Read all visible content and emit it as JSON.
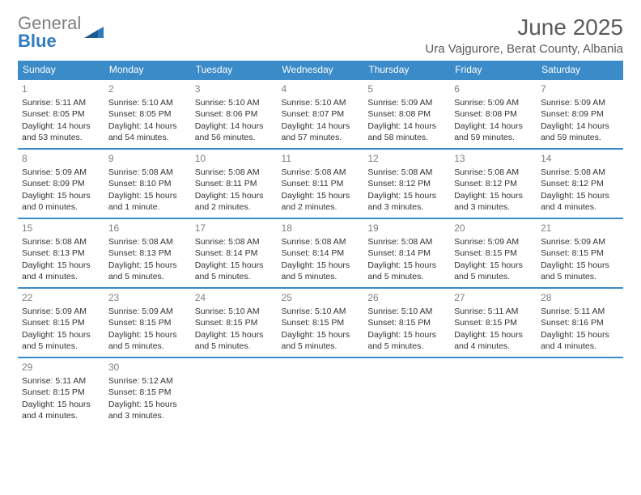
{
  "logo": {
    "gray": "General",
    "blue": "Blue"
  },
  "title": "June 2025",
  "location": "Ura Vajgurore, Berat County, Albania",
  "colors": {
    "header_bg": "#3b8bc8",
    "header_text": "#ffffff",
    "divider": "#3b8bc8",
    "daynum": "#808080",
    "body_text": "#333333",
    "title_text": "#5a5a5a",
    "logo_gray": "#808080",
    "logo_blue": "#2f7bbf"
  },
  "weekdays": [
    "Sunday",
    "Monday",
    "Tuesday",
    "Wednesday",
    "Thursday",
    "Friday",
    "Saturday"
  ],
  "weeks": [
    [
      {
        "n": "1",
        "sr": "Sunrise: 5:11 AM",
        "ss": "Sunset: 8:05 PM",
        "d1": "Daylight: 14 hours",
        "d2": "and 53 minutes."
      },
      {
        "n": "2",
        "sr": "Sunrise: 5:10 AM",
        "ss": "Sunset: 8:05 PM",
        "d1": "Daylight: 14 hours",
        "d2": "and 54 minutes."
      },
      {
        "n": "3",
        "sr": "Sunrise: 5:10 AM",
        "ss": "Sunset: 8:06 PM",
        "d1": "Daylight: 14 hours",
        "d2": "and 56 minutes."
      },
      {
        "n": "4",
        "sr": "Sunrise: 5:10 AM",
        "ss": "Sunset: 8:07 PM",
        "d1": "Daylight: 14 hours",
        "d2": "and 57 minutes."
      },
      {
        "n": "5",
        "sr": "Sunrise: 5:09 AM",
        "ss": "Sunset: 8:08 PM",
        "d1": "Daylight: 14 hours",
        "d2": "and 58 minutes."
      },
      {
        "n": "6",
        "sr": "Sunrise: 5:09 AM",
        "ss": "Sunset: 8:08 PM",
        "d1": "Daylight: 14 hours",
        "d2": "and 59 minutes."
      },
      {
        "n": "7",
        "sr": "Sunrise: 5:09 AM",
        "ss": "Sunset: 8:09 PM",
        "d1": "Daylight: 14 hours",
        "d2": "and 59 minutes."
      }
    ],
    [
      {
        "n": "8",
        "sr": "Sunrise: 5:09 AM",
        "ss": "Sunset: 8:09 PM",
        "d1": "Daylight: 15 hours",
        "d2": "and 0 minutes."
      },
      {
        "n": "9",
        "sr": "Sunrise: 5:08 AM",
        "ss": "Sunset: 8:10 PM",
        "d1": "Daylight: 15 hours",
        "d2": "and 1 minute."
      },
      {
        "n": "10",
        "sr": "Sunrise: 5:08 AM",
        "ss": "Sunset: 8:11 PM",
        "d1": "Daylight: 15 hours",
        "d2": "and 2 minutes."
      },
      {
        "n": "11",
        "sr": "Sunrise: 5:08 AM",
        "ss": "Sunset: 8:11 PM",
        "d1": "Daylight: 15 hours",
        "d2": "and 2 minutes."
      },
      {
        "n": "12",
        "sr": "Sunrise: 5:08 AM",
        "ss": "Sunset: 8:12 PM",
        "d1": "Daylight: 15 hours",
        "d2": "and 3 minutes."
      },
      {
        "n": "13",
        "sr": "Sunrise: 5:08 AM",
        "ss": "Sunset: 8:12 PM",
        "d1": "Daylight: 15 hours",
        "d2": "and 3 minutes."
      },
      {
        "n": "14",
        "sr": "Sunrise: 5:08 AM",
        "ss": "Sunset: 8:12 PM",
        "d1": "Daylight: 15 hours",
        "d2": "and 4 minutes."
      }
    ],
    [
      {
        "n": "15",
        "sr": "Sunrise: 5:08 AM",
        "ss": "Sunset: 8:13 PM",
        "d1": "Daylight: 15 hours",
        "d2": "and 4 minutes."
      },
      {
        "n": "16",
        "sr": "Sunrise: 5:08 AM",
        "ss": "Sunset: 8:13 PM",
        "d1": "Daylight: 15 hours",
        "d2": "and 5 minutes."
      },
      {
        "n": "17",
        "sr": "Sunrise: 5:08 AM",
        "ss": "Sunset: 8:14 PM",
        "d1": "Daylight: 15 hours",
        "d2": "and 5 minutes."
      },
      {
        "n": "18",
        "sr": "Sunrise: 5:08 AM",
        "ss": "Sunset: 8:14 PM",
        "d1": "Daylight: 15 hours",
        "d2": "and 5 minutes."
      },
      {
        "n": "19",
        "sr": "Sunrise: 5:08 AM",
        "ss": "Sunset: 8:14 PM",
        "d1": "Daylight: 15 hours",
        "d2": "and 5 minutes."
      },
      {
        "n": "20",
        "sr": "Sunrise: 5:09 AM",
        "ss": "Sunset: 8:15 PM",
        "d1": "Daylight: 15 hours",
        "d2": "and 5 minutes."
      },
      {
        "n": "21",
        "sr": "Sunrise: 5:09 AM",
        "ss": "Sunset: 8:15 PM",
        "d1": "Daylight: 15 hours",
        "d2": "and 5 minutes."
      }
    ],
    [
      {
        "n": "22",
        "sr": "Sunrise: 5:09 AM",
        "ss": "Sunset: 8:15 PM",
        "d1": "Daylight: 15 hours",
        "d2": "and 5 minutes."
      },
      {
        "n": "23",
        "sr": "Sunrise: 5:09 AM",
        "ss": "Sunset: 8:15 PM",
        "d1": "Daylight: 15 hours",
        "d2": "and 5 minutes."
      },
      {
        "n": "24",
        "sr": "Sunrise: 5:10 AM",
        "ss": "Sunset: 8:15 PM",
        "d1": "Daylight: 15 hours",
        "d2": "and 5 minutes."
      },
      {
        "n": "25",
        "sr": "Sunrise: 5:10 AM",
        "ss": "Sunset: 8:15 PM",
        "d1": "Daylight: 15 hours",
        "d2": "and 5 minutes."
      },
      {
        "n": "26",
        "sr": "Sunrise: 5:10 AM",
        "ss": "Sunset: 8:15 PM",
        "d1": "Daylight: 15 hours",
        "d2": "and 5 minutes."
      },
      {
        "n": "27",
        "sr": "Sunrise: 5:11 AM",
        "ss": "Sunset: 8:15 PM",
        "d1": "Daylight: 15 hours",
        "d2": "and 4 minutes."
      },
      {
        "n": "28",
        "sr": "Sunrise: 5:11 AM",
        "ss": "Sunset: 8:16 PM",
        "d1": "Daylight: 15 hours",
        "d2": "and 4 minutes."
      }
    ],
    [
      {
        "n": "29",
        "sr": "Sunrise: 5:11 AM",
        "ss": "Sunset: 8:15 PM",
        "d1": "Daylight: 15 hours",
        "d2": "and 4 minutes."
      },
      {
        "n": "30",
        "sr": "Sunrise: 5:12 AM",
        "ss": "Sunset: 8:15 PM",
        "d1": "Daylight: 15 hours",
        "d2": "and 3 minutes."
      },
      null,
      null,
      null,
      null,
      null
    ]
  ]
}
